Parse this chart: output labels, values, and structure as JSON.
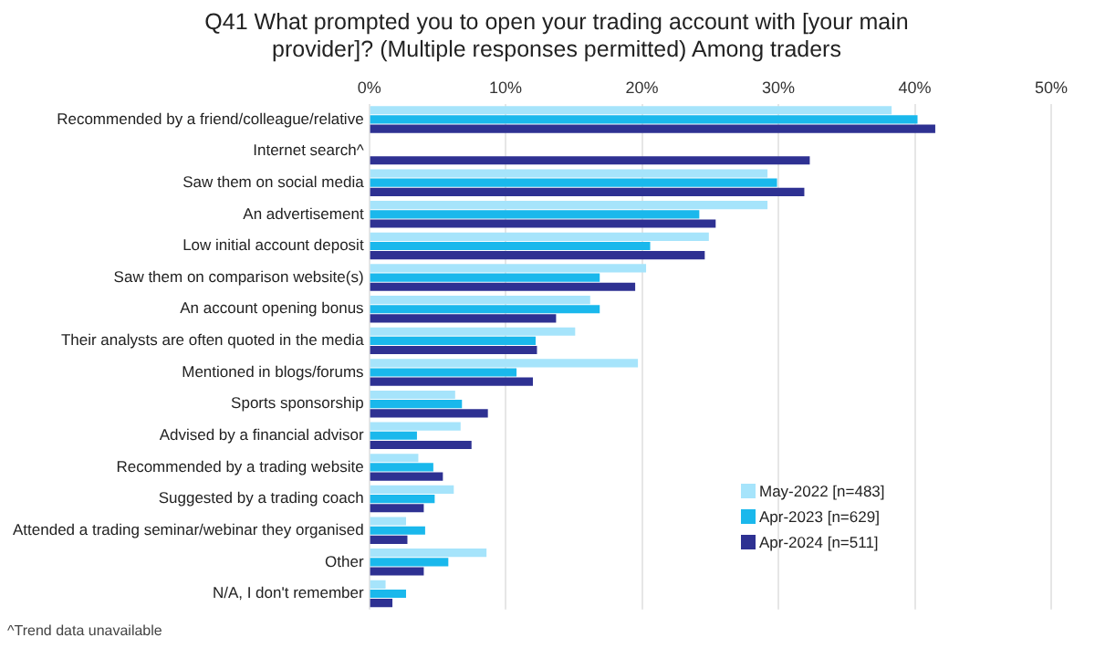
{
  "chart_data": {
    "type": "bar",
    "orientation": "horizontal",
    "title": "Q41 What prompted you to open your trading account with [your main provider]? (Multiple responses permitted) Among traders",
    "categories": [
      "Recommended by a friend/colleague/relative",
      "Internet search^",
      "Saw them on social media",
      "An advertisement",
      "Low initial account deposit",
      "Saw them on comparison website(s)",
      "An account opening bonus",
      "Their analysts are often quoted in the media",
      "Mentioned in blogs/forums",
      "Sports sponsorship",
      "Advised by a financial advisor",
      "Recommended by a trading website",
      "Suggested by a trading coach",
      "Attended a trading seminar/webinar they organised",
      "Other",
      "N/A, I don't remember"
    ],
    "series": [
      {
        "name": "May-2022 [n=483]",
        "color": "#a6e4fb",
        "values": [
          38.3,
          null,
          29.2,
          29.2,
          24.9,
          20.3,
          16.2,
          15.1,
          19.7,
          6.3,
          6.7,
          3.6,
          6.2,
          2.7,
          8.6,
          1.2
        ]
      },
      {
        "name": "Apr-2023 [n=629]",
        "color": "#1ab8ec",
        "values": [
          40.2,
          null,
          29.9,
          24.2,
          20.6,
          16.9,
          16.9,
          12.2,
          10.8,
          6.8,
          3.5,
          4.7,
          4.8,
          4.1,
          5.8,
          2.7
        ]
      },
      {
        "name": "Apr-2024 [n=511]",
        "color": "#2e3192",
        "values": [
          41.5,
          32.3,
          31.9,
          25.4,
          24.6,
          19.5,
          13.7,
          12.3,
          12.0,
          8.7,
          7.5,
          5.4,
          4.0,
          2.8,
          4.0,
          1.7
        ]
      }
    ],
    "xlim": [
      0,
      50
    ],
    "xticks": [
      {
        "value": 0,
        "label": "0%"
      },
      {
        "value": 10,
        "label": "10%"
      },
      {
        "value": 20,
        "label": "20%"
      },
      {
        "value": 30,
        "label": "30%"
      },
      {
        "value": 40,
        "label": "40%"
      },
      {
        "value": 50,
        "label": "50%"
      }
    ],
    "grid": "x",
    "legend": "bottom right",
    "annotations": [
      "^Trend data unavailable"
    ]
  }
}
